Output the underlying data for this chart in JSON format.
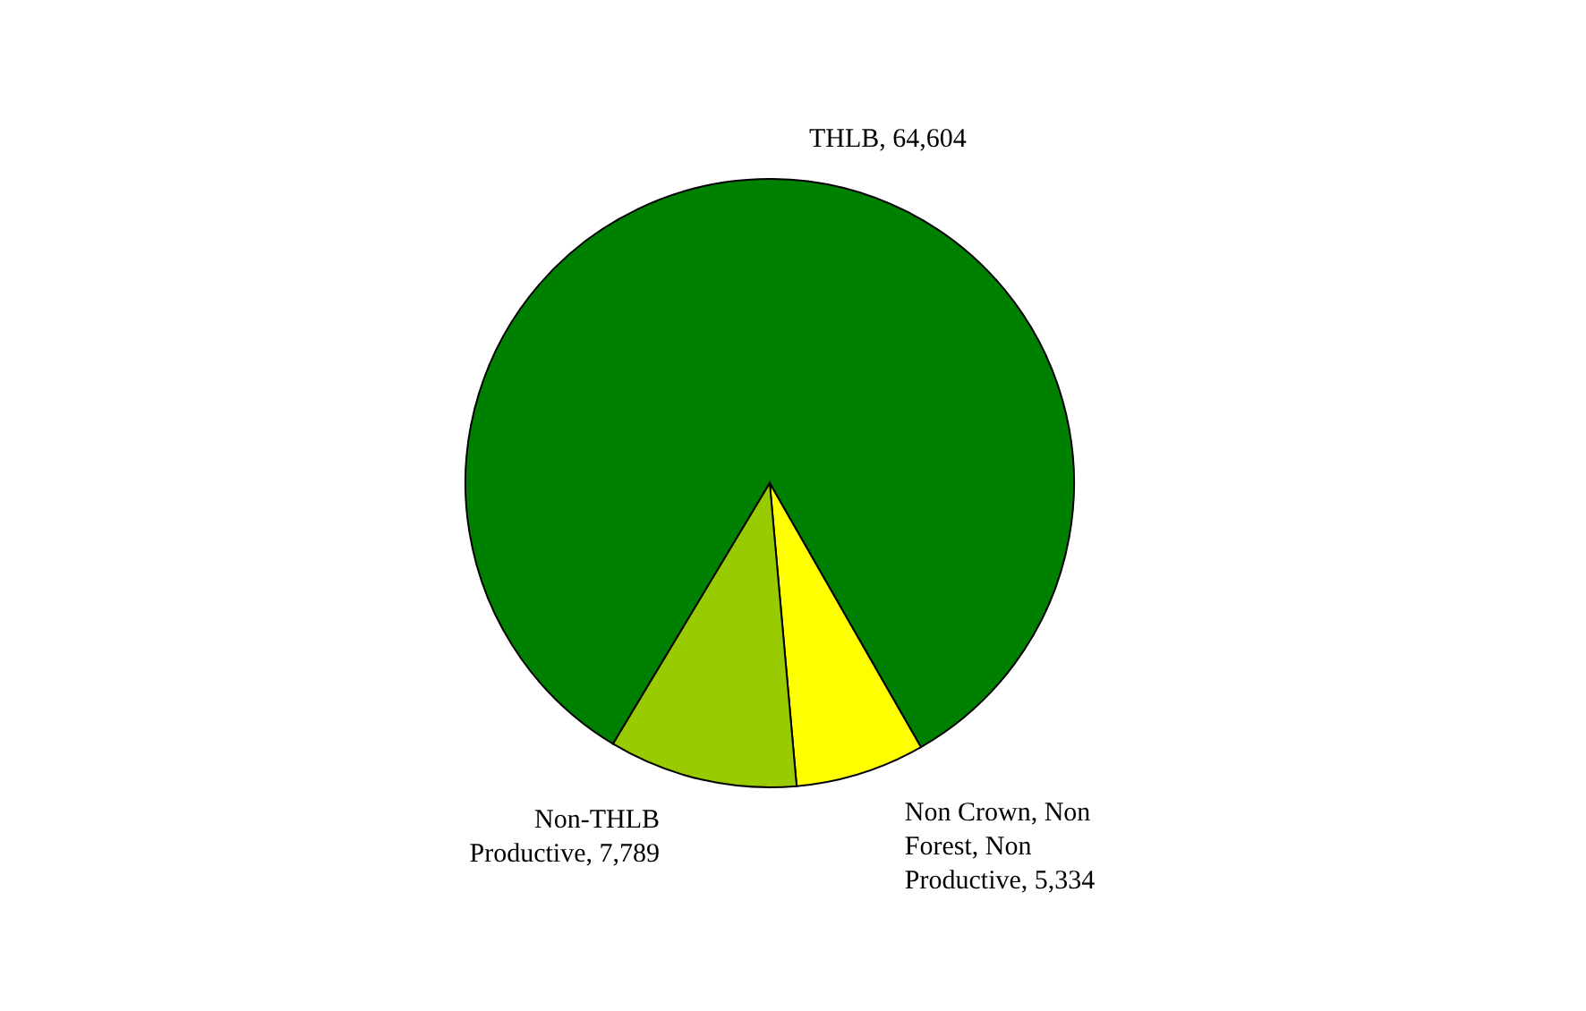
{
  "chart_data": {
    "type": "pie",
    "categories": [
      "THLB",
      "Non Crown, Non Forest, Non Productive",
      "Non-THLB Productive"
    ],
    "values": [
      64604,
      5334,
      7789
    ],
    "value_labels": [
      "64,604",
      "5,334",
      "7,789"
    ],
    "colors": [
      "#008000",
      "#ffff00",
      "#99cc00"
    ],
    "legend": false
  }
}
